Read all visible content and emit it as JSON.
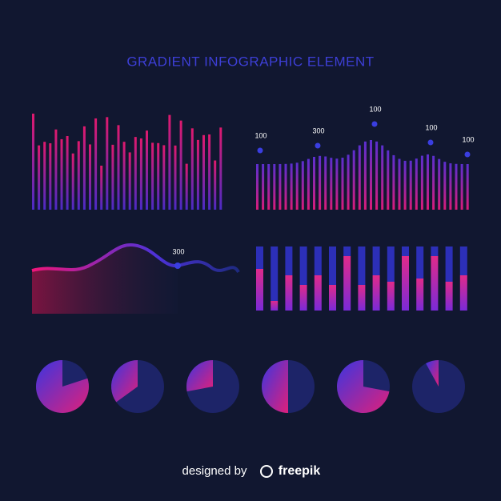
{
  "title": "GRADIENT INFOGRAPHIC ELEMENT",
  "wave_bars_labels": [
    "100",
    "300",
    "100",
    "100",
    "100"
  ],
  "area_label": "300",
  "footer": {
    "prefix": "designed by",
    "brand": "freepik"
  }
}
